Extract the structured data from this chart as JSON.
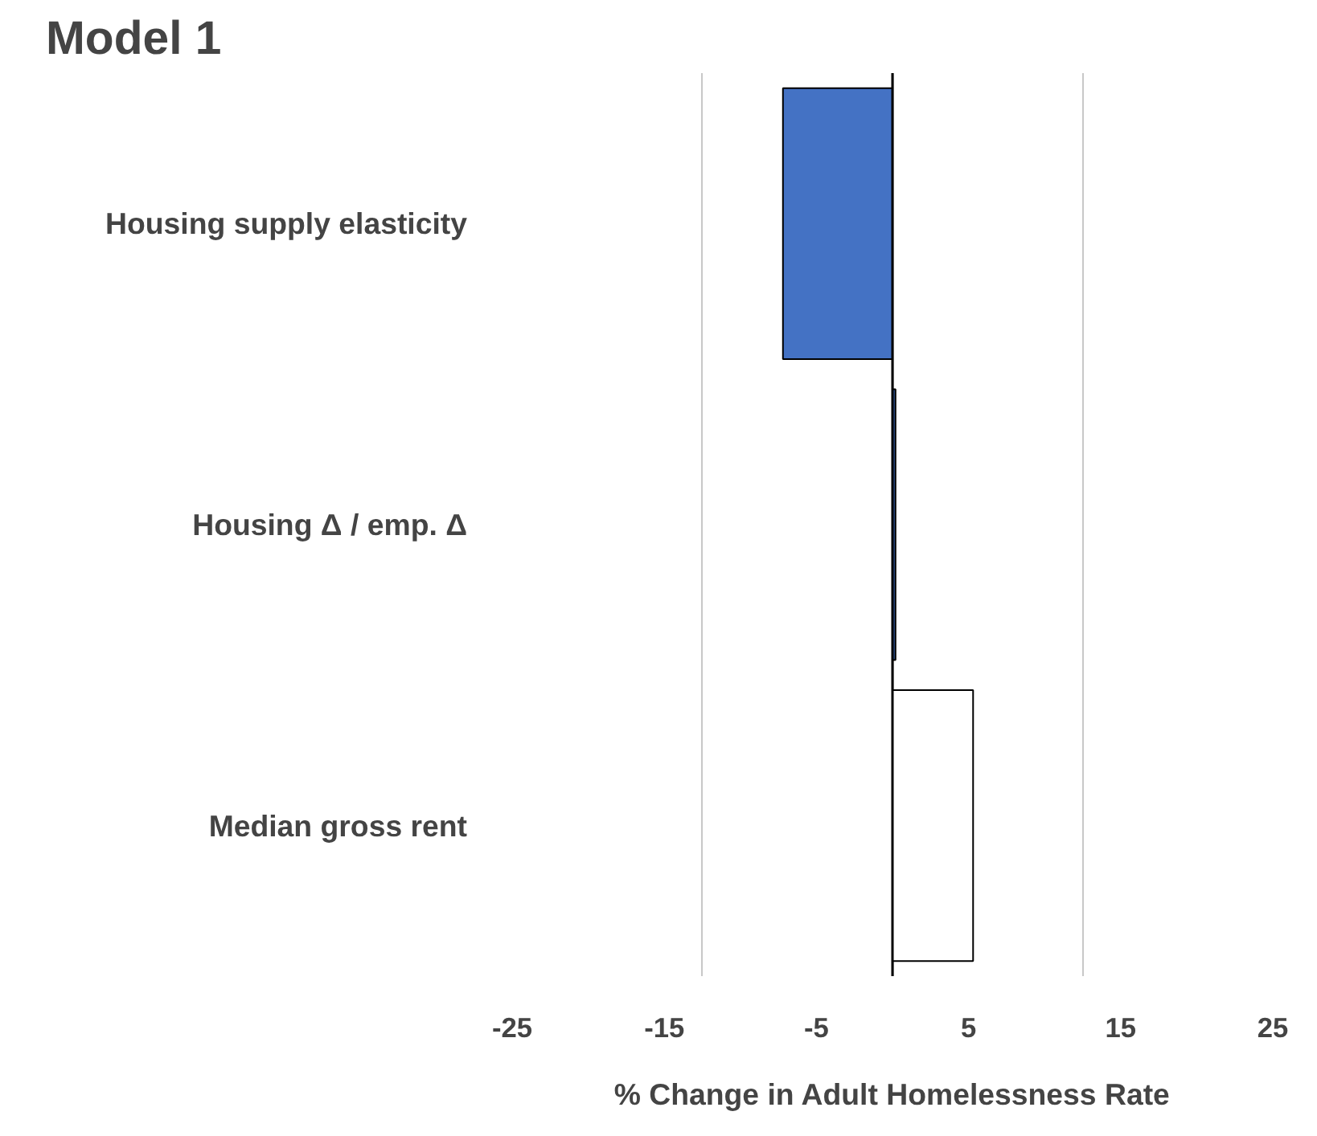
{
  "chart_data": {
    "type": "bar",
    "orientation": "horizontal",
    "title": "Model 1",
    "xlabel": "% Change in Adult Homelessness Rate",
    "categories": [
      "Housing supply elasticity",
      "Housing Δ / emp. Δ",
      "Median gross rent"
    ],
    "values": [
      -7.2,
      0.2,
      5.3
    ],
    "colors": [
      "#4472c4",
      "#2f5597",
      "#ffffff"
    ],
    "xlim": [
      -25,
      25
    ],
    "xticks": [
      -25,
      {
        "value": -15,
        "label": "-15"
      },
      {
        "value": -12.5,
        "label": null
      },
      {
        "value": -5,
        "label": "-5"
      },
      {
        "value": 0,
        "label": null
      },
      5,
      {
        "value": 12.5,
        "label": null
      },
      15,
      25
    ],
    "grid": "x"
  }
}
